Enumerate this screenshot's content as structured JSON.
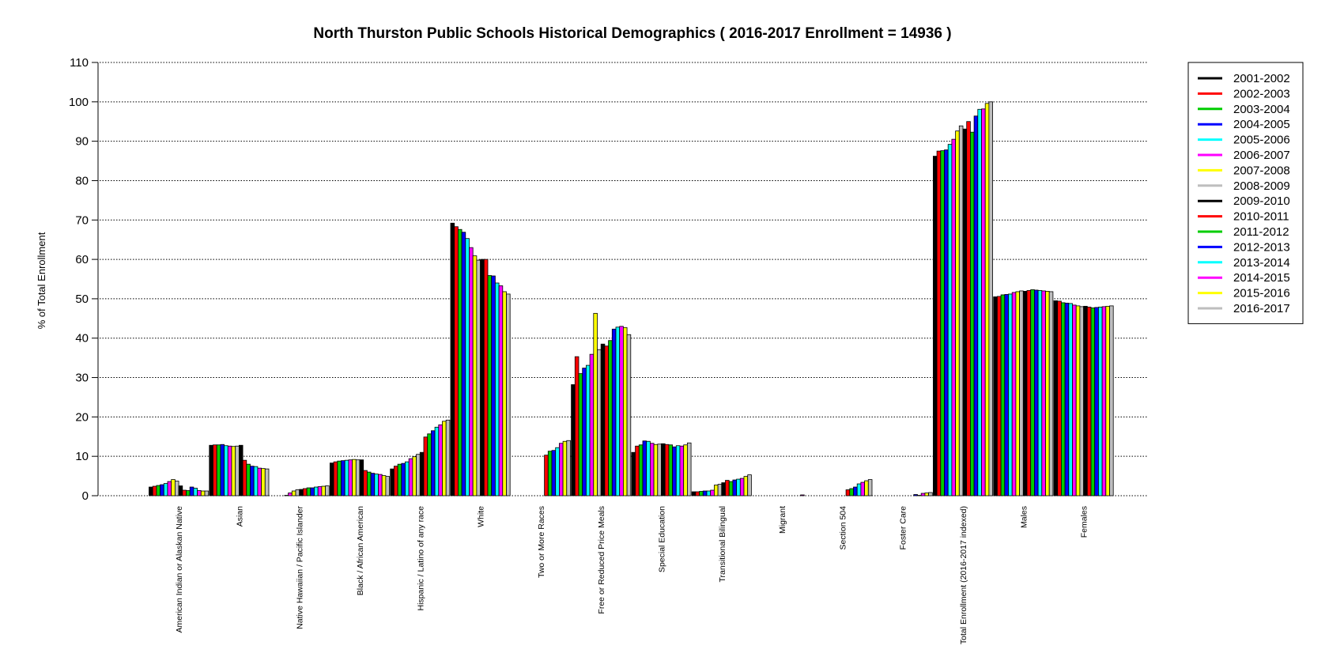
{
  "chart_data": {
    "type": "bar",
    "title": "North Thurston Public Schools Historical Demographics  ( 2016-2017 Enrollment =  14936 )",
    "ylabel": "% of Total Enrollment",
    "xlabel": "",
    "ylim": [
      0,
      110
    ],
    "yticks": [
      0,
      10,
      20,
      30,
      40,
      50,
      60,
      70,
      80,
      90,
      100,
      110
    ],
    "grid": "horizontal dotted",
    "legend_position": "right",
    "categories": [
      "American Indian or Alaskan Native",
      "Asian",
      "Native Hawaiian / Pacific Islander",
      "Black / African American",
      "Hispanic / Latino of any race",
      "White",
      "Two or More Races",
      "Free or Reduced Price Meals",
      "Special Education",
      "Transitional Bilingual",
      "Migrant",
      "Section 504",
      "Foster Care",
      "Total Enrollment (2016-2017 indexed)",
      "Males",
      "Females"
    ],
    "series": [
      {
        "name": "2001-2002",
        "color": "#000000",
        "values": [
          2.2,
          12.8,
          null,
          8.3,
          6.8,
          69.2,
          null,
          28.2,
          11.0,
          1.0,
          0,
          null,
          null,
          86.2,
          50.5,
          49.5
        ]
      },
      {
        "name": "2002-2003",
        "color": "#ff0000",
        "values": [
          2.4,
          12.9,
          null,
          8.6,
          7.5,
          68.3,
          null,
          35.3,
          12.6,
          1.0,
          0,
          null,
          null,
          87.5,
          50.6,
          49.4
        ]
      },
      {
        "name": "2003-2004",
        "color": "#00cd00",
        "values": [
          2.6,
          12.9,
          null,
          8.8,
          8.0,
          67.6,
          null,
          31.0,
          12.9,
          1.1,
          0,
          null,
          null,
          87.6,
          51.0,
          49.0
        ]
      },
      {
        "name": "2004-2005",
        "color": "#0000ff",
        "values": [
          2.8,
          13.0,
          null,
          8.9,
          8.2,
          66.9,
          null,
          32.4,
          13.9,
          1.2,
          0,
          null,
          null,
          87.8,
          51.1,
          48.9
        ]
      },
      {
        "name": "2005-2006",
        "color": "#00ffff",
        "values": [
          3.1,
          12.7,
          0.1,
          9.0,
          8.6,
          65.3,
          null,
          33.1,
          13.8,
          1.2,
          0,
          null,
          null,
          89.2,
          51.2,
          48.8
        ]
      },
      {
        "name": "2006-2007",
        "color": "#ff00ff",
        "values": [
          3.6,
          12.6,
          0.7,
          9.1,
          9.4,
          63.0,
          null,
          35.9,
          13.3,
          1.4,
          0,
          null,
          null,
          90.5,
          51.6,
          48.4
        ]
      },
      {
        "name": "2007-2008",
        "color": "#ffff00",
        "values": [
          4.1,
          12.5,
          1.2,
          9.2,
          9.9,
          60.9,
          null,
          46.3,
          13.0,
          2.7,
          0,
          null,
          null,
          92.6,
          51.8,
          48.2
        ]
      },
      {
        "name": "2008-2009",
        "color": "#bebebe",
        "values": [
          3.7,
          12.6,
          1.5,
          9.1,
          10.5,
          59.8,
          null,
          37.1,
          13.1,
          2.9,
          0,
          null,
          null,
          93.9,
          52.0,
          48.0
        ]
      },
      {
        "name": "2009-2010",
        "color": "#000000",
        "values": [
          2.5,
          12.8,
          1.6,
          9.1,
          11.0,
          60.0,
          null,
          38.5,
          13.2,
          3.3,
          0,
          null,
          null,
          93.1,
          51.9,
          48.1
        ]
      },
      {
        "name": "2010-2011",
        "color": "#ff0000",
        "values": [
          1.4,
          9.0,
          1.8,
          6.4,
          14.9,
          60.0,
          10.3,
          38.0,
          13.0,
          3.9,
          0,
          1.5,
          null,
          95.0,
          52.1,
          47.9
        ]
      },
      {
        "name": "2011-2012",
        "color": "#00cd00",
        "values": [
          1.3,
          8.0,
          2.0,
          6.0,
          15.7,
          55.9,
          11.3,
          39.4,
          12.9,
          3.6,
          0,
          1.8,
          null,
          92.3,
          52.3,
          47.7
        ]
      },
      {
        "name": "2012-2013",
        "color": "#0000ff",
        "values": [
          2.2,
          7.5,
          2.0,
          5.7,
          16.5,
          55.8,
          11.5,
          42.3,
          12.4,
          4.0,
          0,
          2.2,
          0.3,
          96.4,
          52.2,
          47.8
        ]
      },
      {
        "name": "2013-2014",
        "color": "#00ffff",
        "values": [
          1.9,
          7.4,
          2.2,
          5.5,
          17.4,
          54.0,
          12.2,
          42.8,
          12.7,
          4.2,
          0,
          3.0,
          0.1,
          98.1,
          52.1,
          47.9
        ]
      },
      {
        "name": "2014-2015",
        "color": "#ff00ff",
        "values": [
          1.3,
          7.0,
          2.3,
          5.4,
          18.0,
          53.3,
          13.3,
          43.0,
          12.6,
          4.4,
          0.2,
          3.4,
          0.6,
          98.2,
          52.0,
          48.0
        ]
      },
      {
        "name": "2015-2016",
        "color": "#ffff00",
        "values": [
          1.2,
          6.9,
          2.4,
          5.1,
          18.9,
          51.8,
          13.8,
          42.7,
          12.9,
          4.9,
          0,
          3.8,
          0.7,
          99.6,
          51.9,
          48.1
        ]
      },
      {
        "name": "2016-2017",
        "color": "#bebebe",
        "values": [
          1.2,
          6.8,
          2.5,
          4.9,
          19.2,
          51.2,
          14.0,
          40.9,
          13.4,
          5.3,
          0,
          4.1,
          0.8,
          100.0,
          51.8,
          48.2
        ]
      }
    ]
  }
}
